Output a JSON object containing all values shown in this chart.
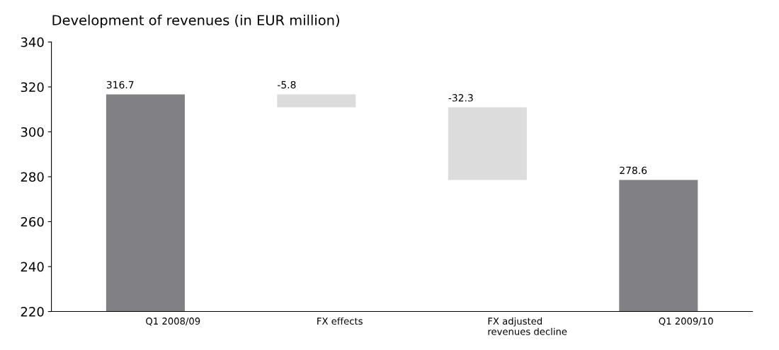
{
  "chart_data": {
    "type": "bar",
    "title": "Development of revenues (in EUR million)",
    "categories": [
      "Q1 2008/09",
      "FX effects",
      "FX adjusted\nrevenues decline",
      "Q1 2009/10"
    ],
    "values": [
      316.7,
      -5.8,
      -32.3,
      278.6
    ],
    "base": [
      null,
      316.7,
      310.9,
      null
    ],
    "colors": [
      "#808085",
      "#dcdcdd",
      "#dcdcdd",
      "#808085"
    ],
    "ylim": [
      220,
      340
    ],
    "yticks": [
      220,
      240,
      260,
      280,
      300,
      320,
      340
    ],
    "data_labels": true,
    "grid": false
  }
}
